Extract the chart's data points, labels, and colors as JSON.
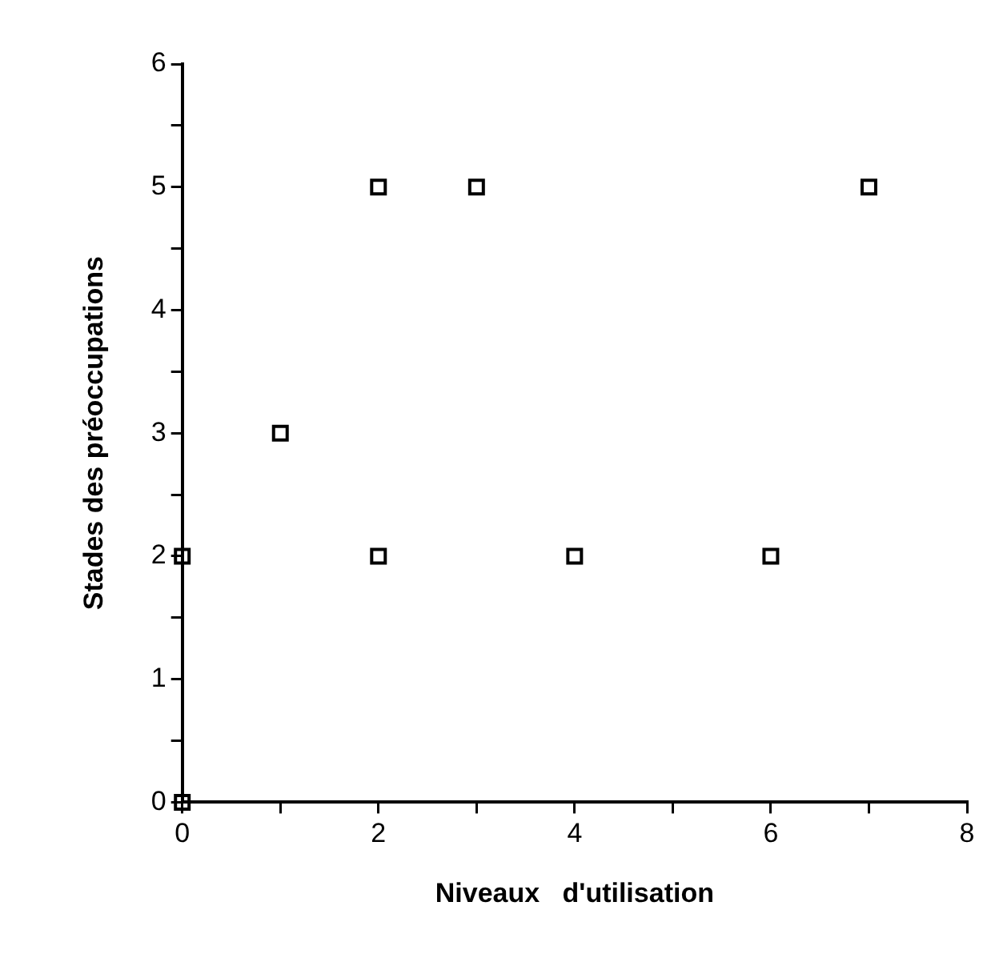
{
  "chart_data": {
    "type": "scatter",
    "xlabel": "Niveaux   d'utilisation",
    "ylabel": "Stades des préoccupations",
    "x": [
      0,
      0,
      1,
      2,
      2,
      3,
      4,
      6,
      7
    ],
    "series": [
      {
        "color": "#000000",
        "values": [
          2,
          0,
          3,
          5,
          2,
          5,
          2,
          2,
          5
        ]
      }
    ],
    "xlim": [
      0,
      8
    ],
    "xticks": [
      0,
      {
        "value": 1,
        "label": null
      },
      2,
      {
        "value": 3,
        "label": null
      },
      4,
      {
        "value": 5,
        "label": null
      },
      6,
      {
        "value": 7,
        "label": null
      },
      8
    ],
    "ylim": [
      0,
      6
    ],
    "yticks": [
      0,
      {
        "value": 0.5,
        "label": null
      },
      1,
      {
        "value": 1.5,
        "label": null
      },
      2,
      {
        "value": 2.5,
        "label": null
      },
      3,
      {
        "value": 3.5,
        "label": null
      },
      4,
      {
        "value": 4.5,
        "label": null
      },
      5,
      {
        "value": 5.5,
        "label": null
      },
      6
    ],
    "marker": "square",
    "grid": false,
    "legend": false
  }
}
